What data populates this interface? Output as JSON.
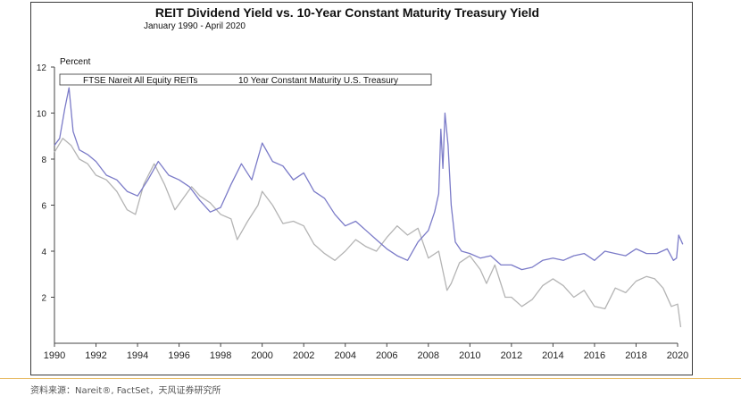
{
  "chart_data": {
    "type": "line",
    "title": "REIT Dividend Yield  vs. 10-Year Constant Maturity  Treasury Yield",
    "subtitle": "January 1990 - April 2020",
    "ylabel": "Percent",
    "xlabel": "",
    "ylim": [
      0,
      12
    ],
    "xlim": [
      1990,
      2020
    ],
    "y_ticks": [
      "2",
      "4",
      "6",
      "8",
      "10",
      "12"
    ],
    "y_tick_values": [
      2,
      4,
      6,
      8,
      10,
      12
    ],
    "x_ticks": [
      "1990",
      "1992",
      "1994",
      "1996",
      "1998",
      "2000",
      "2002",
      "2004",
      "2006",
      "2008",
      "2010",
      "2012",
      "2014",
      "2016",
      "2018",
      "2020"
    ],
    "x_tick_values": [
      1990,
      1992,
      1994,
      1996,
      1998,
      2000,
      2002,
      2004,
      2006,
      2008,
      2010,
      2012,
      2014,
      2016,
      2018,
      2020
    ],
    "grid": false,
    "legend_position": "top-left",
    "series": [
      {
        "name": "FTSE Nareit All Equity REITs",
        "color": "#7b7bc8",
        "x": [
          1990.0,
          1990.25,
          1990.5,
          1990.7,
          1990.9,
          1991.2,
          1991.6,
          1992.0,
          1992.5,
          1993.0,
          1993.5,
          1994.0,
          1994.5,
          1995.0,
          1995.5,
          1996.0,
          1996.5,
          1997.0,
          1997.5,
          1998.0,
          1998.5,
          1999.0,
          1999.5,
          2000.0,
          2000.5,
          2001.0,
          2001.5,
          2002.0,
          2002.5,
          2003.0,
          2003.5,
          2004.0,
          2004.5,
          2005.0,
          2005.5,
          2006.0,
          2006.5,
          2007.0,
          2007.5,
          2008.0,
          2008.3,
          2008.5,
          2008.6,
          2008.7,
          2008.8,
          2008.95,
          2009.1,
          2009.3,
          2009.6,
          2010.0,
          2010.5,
          2011.0,
          2011.5,
          2012.0,
          2012.5,
          2013.0,
          2013.5,
          2014.0,
          2014.5,
          2015.0,
          2015.5,
          2016.0,
          2016.5,
          2017.0,
          2017.5,
          2018.0,
          2018.5,
          2019.0,
          2019.5,
          2019.8,
          2019.95,
          2020.05,
          2020.25
        ],
        "values": [
          8.6,
          8.9,
          10.2,
          11.1,
          9.2,
          8.4,
          8.2,
          7.9,
          7.3,
          7.1,
          6.6,
          6.4,
          7.1,
          7.9,
          7.3,
          7.1,
          6.8,
          6.2,
          5.7,
          5.9,
          6.9,
          7.8,
          7.1,
          8.7,
          7.9,
          7.7,
          7.1,
          7.4,
          6.6,
          6.3,
          5.6,
          5.1,
          5.3,
          4.9,
          4.5,
          4.1,
          3.8,
          3.6,
          4.4,
          4.9,
          5.7,
          6.5,
          9.3,
          7.6,
          10.0,
          8.6,
          6.0,
          4.4,
          4.0,
          3.9,
          3.7,
          3.8,
          3.4,
          3.4,
          3.2,
          3.3,
          3.6,
          3.7,
          3.6,
          3.8,
          3.9,
          3.6,
          4.0,
          3.9,
          3.8,
          4.1,
          3.9,
          3.9,
          4.1,
          3.6,
          3.7,
          4.7,
          4.3
        ]
      },
      {
        "name": "10 Year Constant Maturity U.S. Treasury",
        "color": "#b4b4b4",
        "x": [
          1990.0,
          1990.4,
          1990.8,
          1991.2,
          1991.6,
          1992.0,
          1992.5,
          1993.0,
          1993.5,
          1993.9,
          1994.3,
          1994.8,
          1995.3,
          1995.8,
          1996.2,
          1996.6,
          1997.0,
          1997.5,
          1998.0,
          1998.5,
          1998.8,
          1999.3,
          1999.8,
          2000.0,
          2000.5,
          2001.0,
          2001.5,
          2002.0,
          2002.5,
          2003.0,
          2003.5,
          2004.0,
          2004.5,
          2005.0,
          2005.5,
          2006.0,
          2006.5,
          2007.0,
          2007.5,
          2008.0,
          2008.5,
          2008.9,
          2009.1,
          2009.5,
          2010.0,
          2010.5,
          2010.8,
          2011.2,
          2011.7,
          2012.0,
          2012.5,
          2013.0,
          2013.5,
          2014.0,
          2014.5,
          2015.0,
          2015.5,
          2016.0,
          2016.5,
          2017.0,
          2017.5,
          2018.0,
          2018.5,
          2018.9,
          2019.3,
          2019.7,
          2020.0,
          2020.15
        ],
        "values": [
          8.3,
          8.9,
          8.6,
          8.0,
          7.8,
          7.3,
          7.1,
          6.6,
          5.8,
          5.6,
          6.9,
          7.8,
          6.9,
          5.8,
          6.3,
          6.8,
          6.4,
          6.1,
          5.6,
          5.4,
          4.5,
          5.3,
          6.0,
          6.6,
          6.0,
          5.2,
          5.3,
          5.1,
          4.3,
          3.9,
          3.6,
          4.0,
          4.5,
          4.2,
          4.0,
          4.6,
          5.1,
          4.7,
          5.0,
          3.7,
          4.0,
          2.3,
          2.6,
          3.5,
          3.8,
          3.2,
          2.6,
          3.4,
          2.0,
          2.0,
          1.6,
          1.9,
          2.5,
          2.8,
          2.5,
          2.0,
          2.3,
          1.6,
          1.5,
          2.4,
          2.2,
          2.7,
          2.9,
          2.8,
          2.4,
          1.6,
          1.7,
          0.7
        ]
      }
    ]
  },
  "source_note": "资料来源：Nareit®, FactSet，天风证券研究所"
}
